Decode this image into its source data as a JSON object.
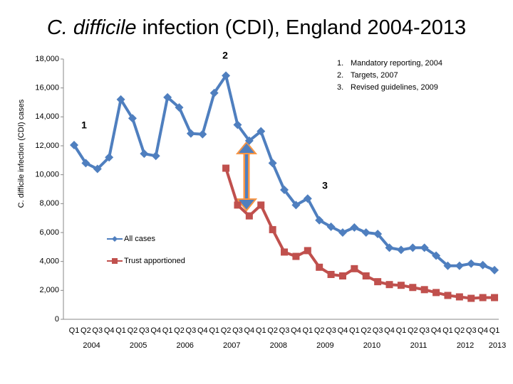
{
  "chart_data": {
    "type": "line",
    "title_italic": "C. difficile",
    "title_rest": " infection (CDI), England 2004-2013",
    "y_label": "C. difficile infection (CDI) cases",
    "categories": [
      "Q1",
      "Q2",
      "Q3",
      "Q4",
      "Q1",
      "Q2",
      "Q3",
      "Q4",
      "Q1",
      "Q2",
      "Q3",
      "Q4",
      "Q1",
      "Q2",
      "Q3",
      "Q4",
      "Q1",
      "Q2",
      "Q3",
      "Q4",
      "Q1",
      "Q2",
      "Q3",
      "Q4",
      "Q1",
      "Q2",
      "Q3",
      "Q4",
      "Q1",
      "Q2",
      "Q3",
      "Q4",
      "Q1",
      "Q2",
      "Q3",
      "Q4",
      "Q1"
    ],
    "years": [
      "2004",
      "2005",
      "2006",
      "2007",
      "2008",
      "2009",
      "2010",
      "2011",
      "2012",
      "2013"
    ],
    "series": [
      {
        "name": "All cases",
        "color": "#4f7fbf",
        "marker": "diamond",
        "values": [
          12050,
          10800,
          10400,
          11200,
          15200,
          13900,
          11450,
          11300,
          15350,
          14650,
          12850,
          12800,
          15650,
          16850,
          13450,
          12350,
          13000,
          10800,
          8950,
          7900,
          8350,
          6850,
          6400,
          6000,
          6350,
          6000,
          5900,
          4950,
          4800,
          4950,
          4950,
          4400,
          3700,
          3700,
          3850,
          3750,
          3400
        ]
      },
      {
        "name": "Trust apportioned",
        "color": "#c0504d",
        "marker": "square",
        "values": [
          null,
          null,
          null,
          null,
          null,
          null,
          null,
          null,
          null,
          null,
          null,
          null,
          null,
          10450,
          7900,
          7150,
          7900,
          6200,
          4650,
          4350,
          4750,
          3600,
          3100,
          3000,
          3500,
          3000,
          2600,
          2400,
          2350,
          2200,
          2050,
          1850,
          1650,
          1550,
          1450,
          1500,
          1500
        ]
      }
    ],
    "ylim": [
      0,
      18000
    ],
    "yticks": [
      0,
      {
        "value": 2000,
        "label": "2,000"
      },
      {
        "value": 4000,
        "label": "4,000"
      },
      {
        "value": 6000,
        "label": "6,000"
      },
      {
        "value": 8000,
        "label": "8,000"
      },
      {
        "value": 10000,
        "label": "10,000"
      },
      {
        "value": 12000,
        "label": "12,000"
      },
      {
        "value": 14000,
        "label": "14,000"
      },
      {
        "value": 16000,
        "label": "16,000"
      },
      {
        "value": 18000,
        "label": "18,000"
      }
    ],
    "annotations": [
      "1",
      "2",
      "3"
    ],
    "notes": [
      {
        "number": "1.",
        "text": "Mandatory reporting, 2004"
      },
      {
        "number": "2.",
        "text": "Targets, 2007"
      },
      {
        "number": "3.",
        "text": "Revised guidelines, 2009"
      }
    ]
  }
}
